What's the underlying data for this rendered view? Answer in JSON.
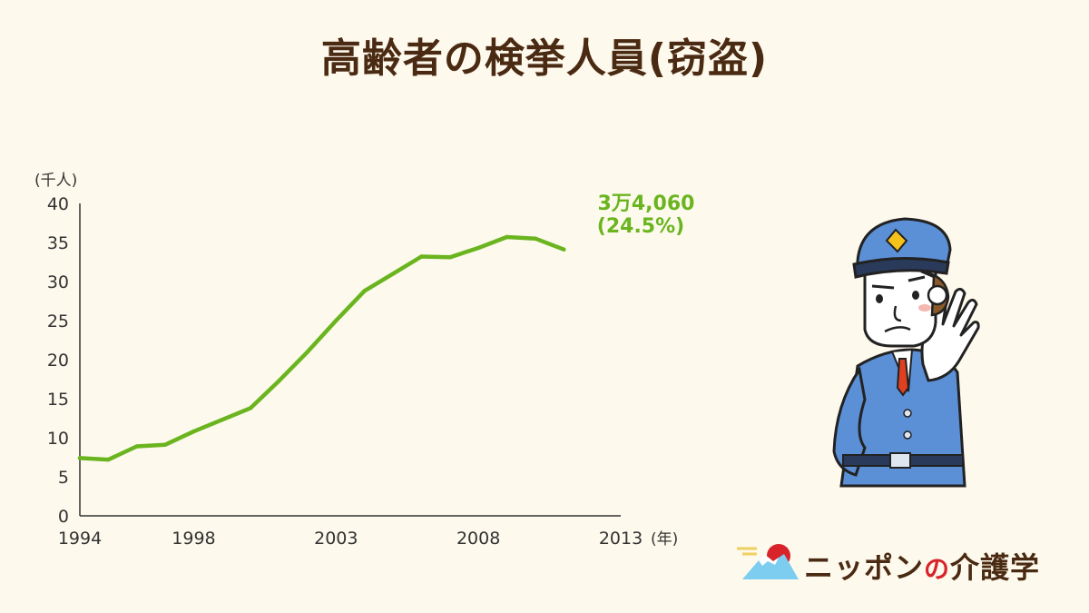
{
  "title": "高齢者の検挙人員(窃盗)",
  "brand": {
    "part1": "ニッポン",
    "accent": "の",
    "part2": "介護学"
  },
  "colors": {
    "line": "#6ab51f",
    "text": "#4a2a12",
    "axis": "#333333",
    "accent": "#d8232a"
  },
  "chart_data": {
    "type": "line",
    "title": "高齢者の検挙人員(窃盗)",
    "ylabel": "(千人)",
    "xlabel": "(年)",
    "ylim": [
      0,
      40
    ],
    "xlim": [
      1994,
      2013
    ],
    "yticks": [
      "0",
      "5",
      "10",
      "15",
      "20",
      "25",
      "30",
      "35",
      "40"
    ],
    "xticks": [
      "1994",
      "1998",
      "2003",
      "2008",
      "2013"
    ],
    "grid": false,
    "series": [
      {
        "x": [
          1994,
          1995,
          1996,
          1997,
          1998,
          1999,
          2000,
          2001,
          2002,
          2003,
          2004,
          2005,
          2006,
          2007,
          2008,
          2009,
          2010,
          2011,
          2012,
          2013
        ],
        "values": [
          7.4,
          7.2,
          8.9,
          9.1,
          10.8,
          12.3,
          13.8,
          17.3,
          21.0,
          25.0,
          28.8,
          31.0,
          33.2,
          33.1,
          34.3,
          35.7,
          35.5,
          34.1,
          null,
          null
        ]
      }
    ],
    "annotation": {
      "value_label": "3万4,060",
      "share_label": "(24.5%)"
    }
  }
}
